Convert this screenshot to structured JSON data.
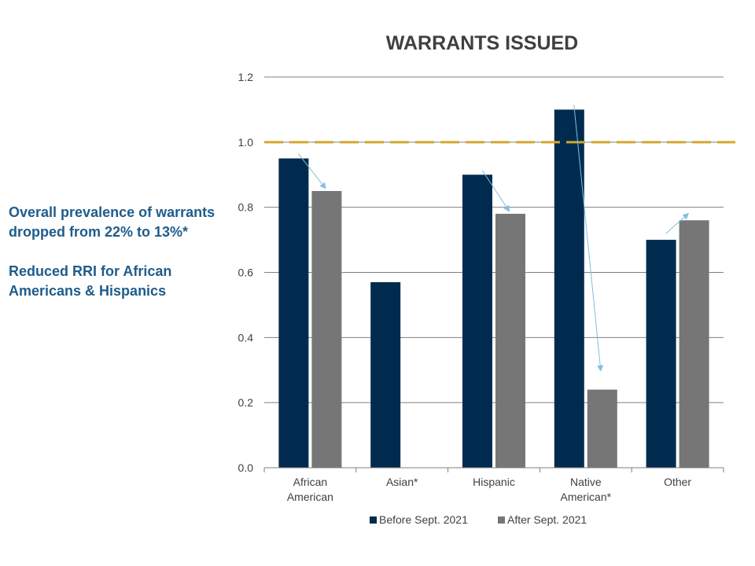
{
  "side_text": {
    "line1": "Overall prevalence of warrants dropped from 22% to 13%*",
    "line2": "Reduced RRI for African Americans & Hispanics"
  },
  "chart_data": {
    "type": "bar",
    "title": "WARRANTS ISSUED",
    "categories": [
      [
        "African",
        "American"
      ],
      [
        "Asian*"
      ],
      [
        "Hispanic"
      ],
      [
        "Native",
        "American*"
      ],
      [
        "Other"
      ]
    ],
    "series": [
      {
        "name": "Before Sept. 2021",
        "values": [
          0.95,
          0.57,
          0.9,
          1.1,
          0.7
        ],
        "color": "#002b4f"
      },
      {
        "name": "After Sept. 2021",
        "values": [
          0.85,
          null,
          0.78,
          0.24,
          0.76
        ],
        "color": "#767676"
      }
    ],
    "ylim": [
      0,
      1.2
    ],
    "yticks": [
      "0.0",
      "0.2",
      "0.4",
      "0.6",
      "0.8",
      "1.0",
      "1.2"
    ],
    "reference_line": {
      "value": 1.0,
      "color": "#d4a72c"
    },
    "arrow_color": "#7fbfe0",
    "grid": true,
    "legend_position": "bottom"
  }
}
